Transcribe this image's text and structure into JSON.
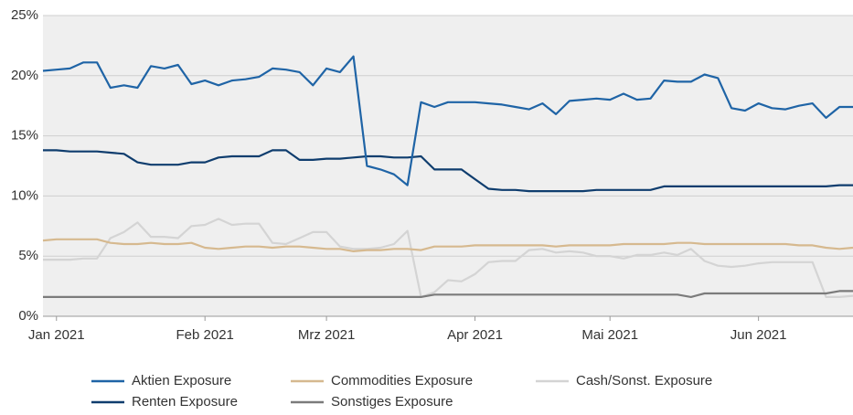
{
  "chart_data": {
    "type": "line",
    "categories": [
      null,
      "Jan 2021",
      null,
      null,
      null,
      null,
      null,
      null,
      null,
      null,
      null,
      null,
      "Feb 2021",
      null,
      null,
      null,
      null,
      null,
      null,
      null,
      null,
      "Mrz 2021",
      null,
      null,
      null,
      null,
      null,
      null,
      null,
      null,
      null,
      null,
      "Apr 2021",
      null,
      null,
      null,
      null,
      null,
      null,
      null,
      null,
      null,
      "Mai 2021",
      null,
      null,
      null,
      null,
      null,
      null,
      null,
      null,
      null,
      null,
      "Jun 2021",
      null,
      null,
      null,
      null,
      null,
      null,
      null
    ],
    "ylim": [
      0,
      25
    ],
    "yticks": [
      {
        "value": 0,
        "label": "0%"
      },
      {
        "value": 5,
        "label": "5%"
      },
      {
        "value": 10,
        "label": "10%"
      },
      {
        "value": 15,
        "label": "15%"
      },
      {
        "value": 20,
        "label": "20%"
      },
      {
        "value": 25,
        "label": "25%"
      }
    ],
    "grid": true,
    "legend": "bottom",
    "series": [
      {
        "name": "Aktien Exposure",
        "color": "#1f64a6",
        "values": [
          20.4,
          20.5,
          20.6,
          21.1,
          21.1,
          19.0,
          19.2,
          19.0,
          20.8,
          20.6,
          20.9,
          19.3,
          19.6,
          19.2,
          19.6,
          19.7,
          19.9,
          20.6,
          20.5,
          20.3,
          19.2,
          20.6,
          20.3,
          21.6,
          12.5,
          12.2,
          11.8,
          10.9,
          17.8,
          17.4,
          17.8,
          17.8,
          17.8,
          17.7,
          17.6,
          17.4,
          17.2,
          17.7,
          16.8,
          17.9,
          18.0,
          18.1,
          18.0,
          18.5,
          18.0,
          18.1,
          19.6,
          19.5,
          19.5,
          20.1,
          19.8,
          17.3,
          17.1,
          17.7,
          17.3,
          17.2,
          17.5,
          17.7,
          16.5,
          17.4,
          17.4
        ]
      },
      {
        "name": "Renten Exposure",
        "color": "#0f3d6e",
        "values": [
          13.8,
          13.8,
          13.7,
          13.7,
          13.7,
          13.6,
          13.5,
          12.8,
          12.6,
          12.6,
          12.6,
          12.8,
          12.8,
          13.2,
          13.3,
          13.3,
          13.3,
          13.8,
          13.8,
          13.0,
          13.0,
          13.1,
          13.1,
          13.2,
          13.3,
          13.3,
          13.2,
          13.2,
          13.3,
          12.2,
          12.2,
          12.2,
          11.4,
          10.6,
          10.5,
          10.5,
          10.4,
          10.4,
          10.4,
          10.4,
          10.4,
          10.5,
          10.5,
          10.5,
          10.5,
          10.5,
          10.8,
          10.8,
          10.8,
          10.8,
          10.8,
          10.8,
          10.8,
          10.8,
          10.8,
          10.8,
          10.8,
          10.8,
          10.8,
          10.9,
          10.9
        ]
      },
      {
        "name": "Commodities Exposure",
        "color": "#d6b98f",
        "values": [
          6.3,
          6.4,
          6.4,
          6.4,
          6.4,
          6.1,
          6.0,
          6.0,
          6.1,
          6.0,
          6.0,
          6.1,
          5.7,
          5.6,
          5.7,
          5.8,
          5.8,
          5.7,
          5.8,
          5.8,
          5.7,
          5.6,
          5.6,
          5.4,
          5.5,
          5.5,
          5.6,
          5.6,
          5.5,
          5.8,
          5.8,
          5.8,
          5.9,
          5.9,
          5.9,
          5.9,
          5.9,
          5.9,
          5.8,
          5.9,
          5.9,
          5.9,
          5.9,
          6.0,
          6.0,
          6.0,
          6.0,
          6.1,
          6.1,
          6.0,
          6.0,
          6.0,
          6.0,
          6.0,
          6.0,
          6.0,
          5.9,
          5.9,
          5.7,
          5.6,
          5.7
        ]
      },
      {
        "name": "Sonstiges Exposure",
        "color": "#7b7b7b",
        "values": [
          1.6,
          1.6,
          1.6,
          1.6,
          1.6,
          1.6,
          1.6,
          1.6,
          1.6,
          1.6,
          1.6,
          1.6,
          1.6,
          1.6,
          1.6,
          1.6,
          1.6,
          1.6,
          1.6,
          1.6,
          1.6,
          1.6,
          1.6,
          1.6,
          1.6,
          1.6,
          1.6,
          1.6,
          1.6,
          1.8,
          1.8,
          1.8,
          1.8,
          1.8,
          1.8,
          1.8,
          1.8,
          1.8,
          1.8,
          1.8,
          1.8,
          1.8,
          1.8,
          1.8,
          1.8,
          1.8,
          1.8,
          1.8,
          1.6,
          1.9,
          1.9,
          1.9,
          1.9,
          1.9,
          1.9,
          1.9,
          1.9,
          1.9,
          1.9,
          2.1,
          2.1
        ]
      },
      {
        "name": "Cash/Sonst. Exposure",
        "color": "#d4d4d4",
        "values": [
          4.7,
          4.7,
          4.7,
          4.8,
          4.8,
          6.5,
          7.0,
          7.8,
          6.6,
          6.6,
          6.5,
          7.5,
          7.6,
          8.1,
          7.6,
          7.7,
          7.7,
          6.1,
          6.0,
          6.5,
          7.0,
          7.0,
          5.8,
          5.6,
          5.6,
          5.7,
          6.0,
          7.1,
          1.6,
          2.0,
          3.0,
          2.9,
          3.5,
          4.5,
          4.6,
          4.6,
          5.5,
          5.6,
          5.3,
          5.4,
          5.3,
          5.0,
          5.0,
          4.8,
          5.1,
          5.1,
          5.3,
          5.1,
          5.6,
          4.6,
          4.2,
          4.1,
          4.2,
          4.4,
          4.5,
          4.5,
          4.5,
          4.5,
          1.6,
          1.6,
          1.7
        ]
      }
    ]
  }
}
